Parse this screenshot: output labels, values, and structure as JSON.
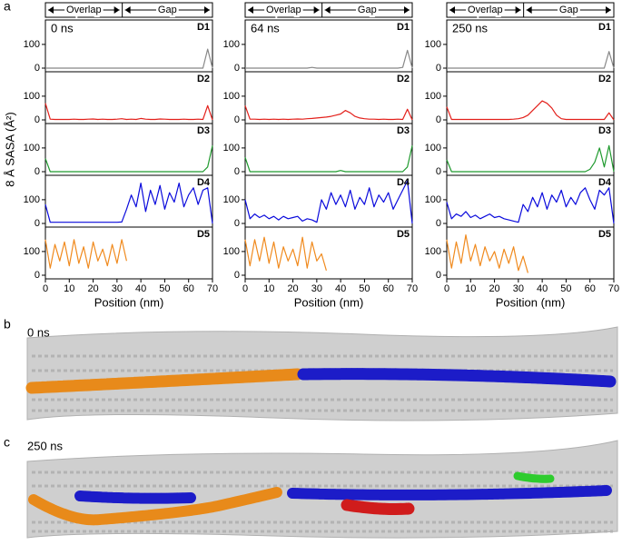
{
  "letters": [
    "a",
    "b",
    "c"
  ],
  "image_labels": [
    "0 ns",
    "250 ns"
  ],
  "chart_data": [
    {
      "type": "line",
      "title": "0 ns",
      "header": [
        "Overlap",
        "Gap"
      ],
      "ylabel": "8 Å SASA (Å²)",
      "xlabel": "Position (nm)",
      "x": [
        0,
        2,
        4,
        6,
        8,
        10,
        12,
        14,
        16,
        18,
        20,
        22,
        24,
        26,
        28,
        30,
        32,
        34,
        36,
        38,
        40,
        42,
        44,
        46,
        48,
        50,
        52,
        54,
        56,
        58,
        60,
        62,
        64,
        66,
        68,
        70
      ],
      "xlim": [
        0,
        70
      ],
      "xticks": [
        0,
        10,
        20,
        30,
        40,
        50,
        60,
        70
      ],
      "ylim": [
        0,
        180
      ],
      "yticks": [
        0,
        100
      ],
      "series": [
        {
          "name": "D1",
          "color": "#888888",
          "values": [
            0,
            0,
            0,
            0,
            0,
            0,
            0,
            0,
            0,
            0,
            0,
            0,
            0,
            0,
            0,
            0,
            0,
            0,
            0,
            0,
            0,
            0,
            0,
            0,
            0,
            0,
            0,
            0,
            0,
            0,
            0,
            0,
            0,
            0,
            80,
            0
          ]
        },
        {
          "name": "D2",
          "color": "#e3201b",
          "values": [
            70,
            3,
            2,
            2,
            2,
            2,
            3,
            2,
            2,
            3,
            4,
            2,
            3,
            2,
            2,
            3,
            5,
            2,
            3,
            2,
            6,
            3,
            2,
            2,
            4,
            3,
            2,
            2,
            2,
            3,
            2,
            2,
            3,
            2,
            60,
            0
          ]
        },
        {
          "name": "D3",
          "color": "#1f9a2e",
          "values": [
            55,
            0,
            0,
            0,
            0,
            0,
            0,
            0,
            0,
            0,
            0,
            0,
            0,
            0,
            0,
            0,
            0,
            0,
            0,
            0,
            0,
            0,
            0,
            0,
            0,
            0,
            0,
            0,
            0,
            0,
            0,
            0,
            0,
            0,
            20,
            110
          ]
        },
        {
          "name": "D4",
          "color": "#0a0adc",
          "values": [
            80,
            5,
            5,
            5,
            5,
            5,
            5,
            5,
            5,
            5,
            5,
            5,
            5,
            5,
            5,
            5,
            6,
            60,
            120,
            70,
            170,
            50,
            140,
            80,
            160,
            60,
            130,
            90,
            170,
            70,
            120,
            150,
            80,
            140,
            150,
            0
          ]
        },
        {
          "name": "D5",
          "color": "#f08a1e",
          "values": [
            150,
            30,
            130,
            60,
            140,
            40,
            150,
            50,
            120,
            30,
            140,
            60,
            110,
            40,
            130,
            50,
            150,
            60,
            null,
            null,
            null,
            null,
            null,
            null,
            null,
            null,
            null,
            null,
            null,
            null,
            null,
            null,
            null,
            null,
            null,
            null
          ]
        }
      ]
    },
    {
      "type": "line",
      "title": "64 ns",
      "header": [
        "Overlap",
        "Gap"
      ],
      "xlabel": "Position (nm)",
      "x": [
        0,
        2,
        4,
        6,
        8,
        10,
        12,
        14,
        16,
        18,
        20,
        22,
        24,
        26,
        28,
        30,
        32,
        34,
        36,
        38,
        40,
        42,
        44,
        46,
        48,
        50,
        52,
        54,
        56,
        58,
        60,
        62,
        64,
        66,
        68,
        70
      ],
      "xlim": [
        0,
        70
      ],
      "xticks": [
        0,
        10,
        20,
        30,
        40,
        50,
        60,
        70
      ],
      "ylim": [
        0,
        180
      ],
      "yticks": [
        0,
        100
      ],
      "series": [
        {
          "name": "D1",
          "color": "#888888",
          "values": [
            0,
            0,
            0,
            0,
            0,
            0,
            0,
            0,
            0,
            0,
            0,
            0,
            0,
            0,
            3,
            0,
            0,
            0,
            0,
            0,
            0,
            0,
            0,
            0,
            0,
            0,
            0,
            0,
            0,
            0,
            0,
            0,
            0,
            3,
            75,
            0
          ]
        },
        {
          "name": "D2",
          "color": "#e3201b",
          "values": [
            60,
            3,
            3,
            2,
            3,
            2,
            3,
            2,
            3,
            2,
            3,
            4,
            3,
            5,
            6,
            8,
            10,
            12,
            15,
            20,
            25,
            40,
            30,
            15,
            8,
            5,
            3,
            3,
            2,
            3,
            2,
            2,
            3,
            2,
            45,
            0
          ]
        },
        {
          "name": "D3",
          "color": "#1f9a2e",
          "values": [
            60,
            0,
            0,
            0,
            0,
            0,
            0,
            0,
            0,
            0,
            0,
            0,
            0,
            0,
            0,
            0,
            0,
            0,
            0,
            0,
            5,
            0,
            0,
            0,
            0,
            0,
            0,
            0,
            0,
            0,
            0,
            0,
            0,
            0,
            20,
            110
          ]
        },
        {
          "name": "D4",
          "color": "#0a0adc",
          "values": [
            100,
            20,
            40,
            25,
            35,
            20,
            30,
            15,
            30,
            20,
            25,
            30,
            10,
            20,
            15,
            5,
            100,
            60,
            130,
            80,
            120,
            70,
            140,
            60,
            110,
            80,
            150,
            70,
            120,
            90,
            130,
            60,
            100,
            140,
            180,
            0
          ]
        },
        {
          "name": "D5",
          "color": "#f08a1e",
          "values": [
            150,
            40,
            150,
            60,
            160,
            50,
            140,
            30,
            120,
            60,
            110,
            40,
            160,
            30,
            140,
            60,
            90,
            20,
            null,
            null,
            null,
            null,
            null,
            null,
            null,
            null,
            null,
            null,
            null,
            null,
            null,
            null,
            null,
            null,
            null,
            null
          ]
        }
      ]
    },
    {
      "type": "line",
      "title": "250 ns",
      "header": [
        "Overlap",
        "Gap"
      ],
      "xlabel": "Position (nm)",
      "x": [
        0,
        2,
        4,
        6,
        8,
        10,
        12,
        14,
        16,
        18,
        20,
        22,
        24,
        26,
        28,
        30,
        32,
        34,
        36,
        38,
        40,
        42,
        44,
        46,
        48,
        50,
        52,
        54,
        56,
        58,
        60,
        62,
        64,
        66,
        68,
        70
      ],
      "xlim": [
        0,
        70
      ],
      "xticks": [
        0,
        10,
        20,
        30,
        40,
        50,
        60,
        70
      ],
      "ylim": [
        0,
        180
      ],
      "yticks": [
        0,
        100
      ],
      "series": [
        {
          "name": "D1",
          "color": "#888888",
          "values": [
            0,
            0,
            0,
            0,
            0,
            0,
            0,
            0,
            0,
            0,
            0,
            0,
            0,
            0,
            0,
            0,
            0,
            0,
            0,
            0,
            0,
            0,
            0,
            0,
            0,
            0,
            0,
            0,
            0,
            0,
            0,
            0,
            0,
            0,
            70,
            0
          ]
        },
        {
          "name": "D2",
          "color": "#e3201b",
          "values": [
            55,
            2,
            2,
            2,
            2,
            2,
            2,
            2,
            2,
            2,
            2,
            2,
            2,
            2,
            3,
            5,
            10,
            20,
            40,
            60,
            80,
            70,
            50,
            20,
            5,
            2,
            2,
            2,
            2,
            2,
            2,
            2,
            2,
            2,
            30,
            0
          ]
        },
        {
          "name": "D3",
          "color": "#1f9a2e",
          "values": [
            50,
            0,
            0,
            0,
            0,
            0,
            0,
            0,
            0,
            0,
            0,
            0,
            0,
            0,
            0,
            0,
            0,
            0,
            0,
            0,
            0,
            0,
            0,
            0,
            0,
            0,
            0,
            0,
            0,
            0,
            10,
            40,
            100,
            20,
            110,
            0
          ]
        },
        {
          "name": "D4",
          "color": "#0a0adc",
          "values": [
            90,
            20,
            40,
            30,
            50,
            25,
            35,
            20,
            30,
            40,
            25,
            30,
            20,
            15,
            10,
            5,
            80,
            50,
            110,
            70,
            130,
            60,
            120,
            90,
            140,
            70,
            110,
            80,
            130,
            150,
            100,
            60,
            140,
            120,
            150,
            0
          ]
        },
        {
          "name": "D5",
          "color": "#f08a1e",
          "values": [
            150,
            30,
            140,
            50,
            170,
            60,
            130,
            40,
            120,
            60,
            100,
            30,
            110,
            50,
            120,
            20,
            80,
            10,
            null,
            null,
            null,
            null,
            null,
            null,
            null,
            null,
            null,
            null,
            null,
            null,
            null,
            null,
            null,
            null,
            null,
            null
          ]
        }
      ]
    }
  ]
}
